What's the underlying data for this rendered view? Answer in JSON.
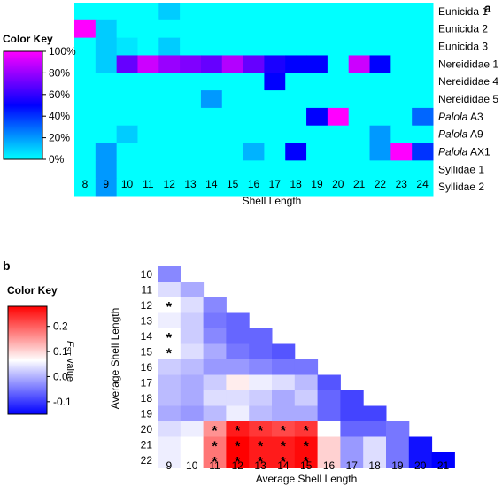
{
  "colors": {
    "heat_low": "#00FFFF",
    "heat_mid": "#0000FF",
    "heat_high": "#FF00FF",
    "fst_low": "#0000FF",
    "fst_mid": "#FFFFFF",
    "fst_high": "#FF0000",
    "background": "#FFFFFF"
  },
  "chart_data": [
    {
      "panel_label": "a",
      "type": "heatmap",
      "xlabel": "Shell Length",
      "ylabel": "",
      "x_categories": [
        "8",
        "9",
        "10",
        "11",
        "12",
        "13",
        "14",
        "15",
        "16",
        "17",
        "18",
        "19",
        "20",
        "21",
        "22",
        "23",
        "24"
      ],
      "y_categories": [
        {
          "italic": "",
          "rest": "Eunicida 1"
        },
        {
          "italic": "",
          "rest": "Eunicida 2"
        },
        {
          "italic": "",
          "rest": "Eunicida 3"
        },
        {
          "italic": "",
          "rest": "Nereididae 1"
        },
        {
          "italic": "",
          "rest": "Nereididae 4"
        },
        {
          "italic": "",
          "rest": "Nereididae 5"
        },
        {
          "italic": "Palola",
          "rest": " A3"
        },
        {
          "italic": "Palola",
          "rest": " A9"
        },
        {
          "italic": "Palola",
          "rest": " AX1"
        },
        {
          "italic": "",
          "rest": "Syllidae 1"
        },
        {
          "italic": "",
          "rest": "Syllidae 2"
        }
      ],
      "values": [
        [
          0,
          0,
          0,
          0,
          10,
          0,
          0,
          0,
          0,
          0,
          0,
          0,
          0,
          0,
          0,
          0,
          0
        ],
        [
          100,
          10,
          0,
          0,
          0,
          0,
          0,
          0,
          0,
          0,
          0,
          0,
          0,
          0,
          0,
          0,
          0
        ],
        [
          0,
          10,
          5,
          0,
          10,
          0,
          0,
          0,
          0,
          0,
          0,
          0,
          0,
          0,
          0,
          0,
          0
        ],
        [
          0,
          10,
          70,
          90,
          80,
          75,
          70,
          85,
          70,
          55,
          50,
          50,
          0,
          90,
          50,
          0,
          0
        ],
        [
          0,
          0,
          0,
          0,
          0,
          0,
          0,
          0,
          0,
          50,
          0,
          0,
          0,
          0,
          0,
          0,
          0
        ],
        [
          0,
          0,
          0,
          0,
          0,
          0,
          20,
          0,
          0,
          0,
          0,
          0,
          0,
          0,
          0,
          0,
          0
        ],
        [
          0,
          0,
          0,
          0,
          0,
          0,
          0,
          0,
          0,
          0,
          0,
          50,
          100,
          0,
          0,
          0,
          30
        ],
        [
          0,
          0,
          10,
          0,
          0,
          0,
          0,
          0,
          0,
          0,
          0,
          0,
          0,
          0,
          20,
          0,
          0
        ],
        [
          0,
          20,
          0,
          0,
          0,
          0,
          0,
          0,
          15,
          0,
          50,
          0,
          0,
          0,
          20,
          100,
          40
        ],
        [
          0,
          20,
          0,
          0,
          0,
          0,
          0,
          0,
          0,
          0,
          0,
          0,
          0,
          0,
          0,
          0,
          0
        ],
        [
          0,
          20,
          0,
          0,
          0,
          0,
          0,
          0,
          0,
          0,
          0,
          0,
          0,
          0,
          0,
          0,
          0
        ]
      ],
      "color_key": {
        "title": "Color Key",
        "ticks": [
          "100%",
          "80%",
          "60%",
          "40%",
          "20%",
          "0%"
        ],
        "range": [
          0,
          100
        ]
      }
    },
    {
      "panel_label": "b",
      "type": "heatmap",
      "xlabel": "Average Shell Length",
      "ylabel": "Average Shell Length",
      "x_categories": [
        "9",
        "10",
        "11",
        "12",
        "13",
        "14",
        "15",
        "16",
        "17",
        "18",
        "19",
        "20",
        "21"
      ],
      "y_categories": [
        "10",
        "11",
        "12",
        "13",
        "14",
        "15",
        "16",
        "17",
        "18",
        "19",
        "20",
        "21",
        "22"
      ],
      "values": [
        [
          -0.07,
          null,
          null,
          null,
          null,
          null,
          null,
          null,
          null,
          null,
          null,
          null,
          null
        ],
        [
          -0.02,
          -0.05,
          null,
          null,
          null,
          null,
          null,
          null,
          null,
          null,
          null,
          null,
          null
        ],
        [
          0.0,
          -0.02,
          -0.07,
          null,
          null,
          null,
          null,
          null,
          null,
          null,
          null,
          null,
          null
        ],
        [
          -0.01,
          -0.03,
          -0.08,
          -0.09,
          null,
          null,
          null,
          null,
          null,
          null,
          null,
          null,
          null
        ],
        [
          0.0,
          -0.03,
          -0.07,
          -0.09,
          -0.09,
          null,
          null,
          null,
          null,
          null,
          null,
          null,
          null
        ],
        [
          0.0,
          -0.02,
          -0.05,
          -0.08,
          -0.09,
          -0.1,
          null,
          null,
          null,
          null,
          null,
          null,
          null
        ],
        [
          -0.03,
          -0.04,
          -0.06,
          -0.06,
          -0.07,
          -0.08,
          -0.08,
          null,
          null,
          null,
          null,
          null,
          null
        ],
        [
          -0.04,
          -0.05,
          -0.03,
          0.02,
          -0.01,
          -0.02,
          -0.04,
          -0.1,
          null,
          null,
          null,
          null,
          null
        ],
        [
          -0.04,
          -0.05,
          -0.02,
          -0.02,
          -0.03,
          -0.05,
          -0.03,
          -0.09,
          -0.11,
          null,
          null,
          null,
          null
        ],
        [
          -0.05,
          -0.06,
          -0.04,
          -0.01,
          -0.04,
          -0.05,
          -0.05,
          -0.09,
          -0.11,
          -0.11,
          null,
          null,
          null
        ],
        [
          -0.02,
          -0.01,
          0.12,
          0.25,
          0.22,
          0.2,
          0.22,
          0.0,
          -0.09,
          -0.09,
          -0.08,
          null,
          null
        ],
        [
          -0.01,
          0.0,
          0.15,
          0.28,
          0.25,
          0.25,
          0.27,
          0.05,
          -0.06,
          -0.02,
          -0.08,
          -0.14,
          null
        ],
        [
          -0.01,
          0.0,
          0.15,
          0.28,
          0.25,
          0.25,
          0.27,
          0.05,
          -0.06,
          -0.02,
          -0.08,
          -0.14,
          -0.16
        ]
      ],
      "significant_marker": "*",
      "significant": [
        [
          0,
          2
        ],
        [
          0,
          4
        ],
        [
          0,
          5
        ],
        [
          2,
          10
        ],
        [
          3,
          10
        ],
        [
          4,
          10
        ],
        [
          5,
          10
        ],
        [
          6,
          10
        ],
        [
          2,
          11
        ],
        [
          3,
          11
        ],
        [
          4,
          11
        ],
        [
          5,
          11
        ],
        [
          6,
          11
        ],
        [
          2,
          12
        ],
        [
          3,
          12
        ],
        [
          4,
          12
        ],
        [
          5,
          12
        ],
        [
          6,
          12
        ]
      ],
      "color_key": {
        "title": "Color Key",
        "label_italic": "F",
        "label_sub": "ST",
        "label_rest": " value",
        "ticks": [
          "0.2",
          "0.1",
          "0.0",
          "-0.1"
        ],
        "tick_values": [
          0.2,
          0.1,
          0.0,
          -0.1
        ],
        "range": [
          -0.15,
          0.28
        ]
      }
    }
  ]
}
